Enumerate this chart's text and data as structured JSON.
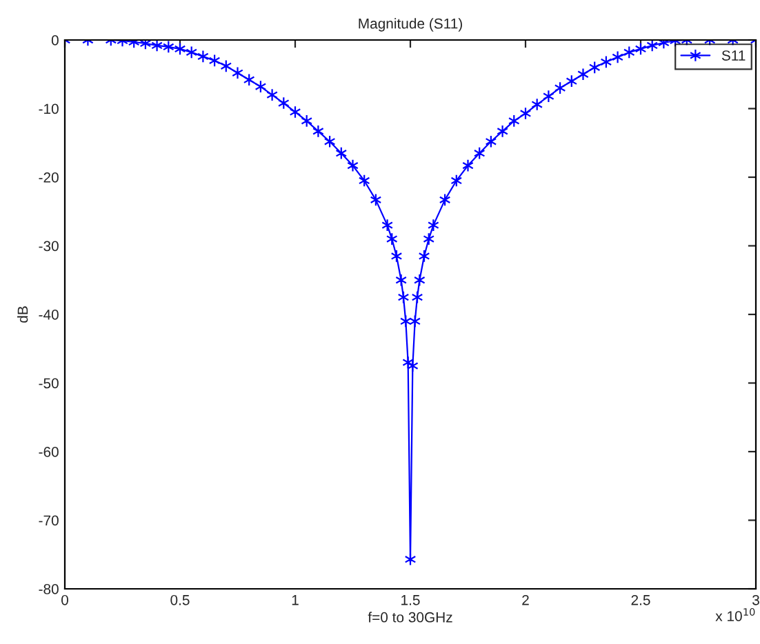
{
  "chart_data": {
    "type": "line",
    "title": "Magnitude (S11)",
    "xlabel": "f=0 to 30GHz",
    "ylabel": "dB",
    "annotations": [
      "x 10$^{10}$"
    ],
    "x": [
      0,
      0.1,
      0.2,
      0.25,
      0.3,
      0.35,
      0.4,
      0.45,
      0.5,
      0.55,
      0.6,
      0.65,
      0.7,
      0.75,
      0.8,
      0.85,
      0.9,
      0.95,
      1.0,
      1.05,
      1.1,
      1.15,
      1.2,
      1.25,
      1.3,
      1.35,
      1.4,
      1.42,
      1.44,
      1.46,
      1.47,
      1.48,
      1.49,
      1.5,
      1.51,
      1.52,
      1.53,
      1.54,
      1.56,
      1.58,
      1.6,
      1.65,
      1.7,
      1.75,
      1.8,
      1.85,
      1.9,
      1.95,
      2.0,
      2.05,
      2.1,
      2.15,
      2.2,
      2.25,
      2.3,
      2.35,
      2.4,
      2.45,
      2.5,
      2.55,
      2.6,
      2.65,
      2.7,
      2.8,
      2.9,
      3.0
    ],
    "series": [
      {
        "name": "S11",
        "color": "#0000ff",
        "values": [
          0,
          0,
          0,
          -0.1,
          -0.3,
          -0.5,
          -0.8,
          -1.0,
          -1.3,
          -1.8,
          -2.4,
          -3.0,
          -3.8,
          -4.8,
          -5.8,
          -6.8,
          -8.0,
          -9.2,
          -10.5,
          -11.8,
          -13.3,
          -14.8,
          -16.5,
          -18.3,
          -20.5,
          -23.3,
          -27,
          -29,
          -31.5,
          -35,
          -37.5,
          -41,
          -47,
          -75.7,
          -47.5,
          -41,
          -37.5,
          -35,
          -31.5,
          -29,
          -27,
          -23.3,
          -20.5,
          -18.3,
          -16.5,
          -14.8,
          -13.3,
          -11.8,
          -10.7,
          -9.4,
          -8.2,
          -7.0,
          -6.0,
          -5.0,
          -4.0,
          -3.2,
          -2.5,
          -1.8,
          -1.3,
          -0.8,
          -0.4,
          -0.1,
          0,
          0,
          0,
          0
        ]
      }
    ],
    "xlim": [
      0,
      3
    ],
    "xticks": [
      0,
      0.5,
      1,
      1.5,
      2,
      2.5,
      3
    ],
    "ylim": [
      -80,
      0
    ],
    "yticks": [
      -80,
      -70,
      -60,
      -50,
      -40,
      -30,
      -20,
      -10,
      0
    ],
    "marker": "cross",
    "line_style": "solid",
    "legend": "top right",
    "grid": false
  }
}
